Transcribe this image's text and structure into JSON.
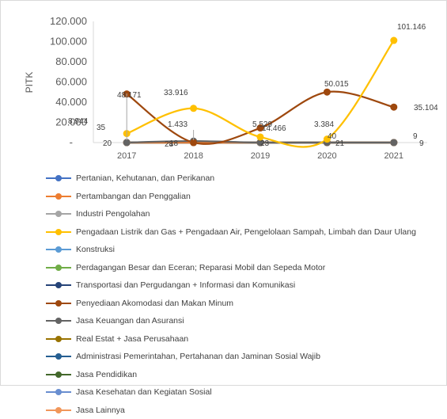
{
  "chart_data": {
    "type": "line",
    "ylabel": "PITK",
    "x": [
      "2017",
      "2018",
      "2019",
      "2020",
      "2021"
    ],
    "y_ticks": [
      "-",
      "20.000",
      "40.000",
      "60.000",
      "80.000",
      "100.000",
      "120.000"
    ],
    "ylim": [
      0,
      120000
    ],
    "grid": false,
    "legend_position": "bottom",
    "series": [
      {
        "name": "Pertanian, Kehutanan, dan Perikanan",
        "color": "#4472C4",
        "values": [
          0,
          0,
          0,
          0,
          0
        ]
      },
      {
        "name": "Pertambangan dan Penggalian",
        "color": "#ED7D31",
        "values": [
          20,
          18,
          23,
          21,
          9
        ]
      },
      {
        "name": "Industri Pengolahan",
        "color": "#A5A5A5",
        "values": [
          0,
          0,
          0,
          0,
          0
        ]
      },
      {
        "name": "Pengadaan Listrik dan Gas + Pengadaan Air, Pengelolaan Sampah, Limbah dan Daur Ulang",
        "color": "#FFC000",
        "values": [
          8944,
          33916,
          5529,
          3384,
          101146
        ]
      },
      {
        "name": "Konstruksi",
        "color": "#5B9BD5",
        "values": [
          0,
          0,
          0,
          0,
          0
        ]
      },
      {
        "name": "Perdagangan Besar dan Eceran; Reparasi Mobil dan Sepeda Motor",
        "color": "#70AD47",
        "values": [
          0,
          0,
          0,
          0,
          0
        ]
      },
      {
        "name": "Transportasi dan Pergudangan + Informasi dan Komunikasi",
        "color": "#264478",
        "values": [
          0,
          0,
          0,
          0,
          0
        ]
      },
      {
        "name": "Penyediaan Akomodasi dan Makan Minum",
        "color": "#9E480E",
        "values": [
          48171,
          28,
          14466,
          50015,
          35104
        ]
      },
      {
        "name": "Jasa Keuangan dan Asuransi",
        "color": "#636363",
        "values": [
          35,
          1433,
          0,
          40,
          9
        ]
      },
      {
        "name": "Real Estat + Jasa Perusahaan",
        "color": "#997300",
        "values": [
          0,
          0,
          0,
          0,
          0
        ]
      },
      {
        "name": "Administrasi Pemerintahan, Pertahanan dan Jaminan Sosial Wajib",
        "color": "#255E91",
        "values": [
          0,
          0,
          0,
          0,
          0
        ]
      },
      {
        "name": "Jasa Pendidikan",
        "color": "#43682B",
        "values": [
          0,
          0,
          0,
          0,
          0
        ]
      },
      {
        "name": "Jasa Kesehatan dan Kegiatan Sosial",
        "color": "#698ED0",
        "values": [
          0,
          0,
          0,
          0,
          0
        ]
      },
      {
        "name": "Jasa Lainnya",
        "color": "#F1975A",
        "values": [
          0,
          0,
          0,
          0,
          0
        ]
      }
    ],
    "data_labels": [
      {
        "x": "2017",
        "text": "48.171",
        "series": "Penyediaan Akomodasi dan Makan Minum"
      },
      {
        "x": "2017",
        "text": "8.944",
        "series": "Pengadaan Listrik dan Gas + Pengadaan Air, Pengelolaan Sampah, Limbah dan Daur Ulang"
      },
      {
        "x": "2017",
        "text": "35",
        "series": "Jasa Keuangan dan Asuransi"
      },
      {
        "x": "2017",
        "text": "20",
        "series": "Pertambangan dan Penggalian"
      },
      {
        "x": "2018",
        "text": "33.916",
        "series": "Pengadaan Listrik dan Gas + Pengadaan Air, Pengelolaan Sampah, Limbah dan Daur Ulang"
      },
      {
        "x": "2018",
        "text": "1.433",
        "series": "Jasa Keuangan dan Asuransi"
      },
      {
        "x": "2018",
        "text": "28",
        "series": "Penyediaan Akomodasi dan Makan Minum"
      },
      {
        "x": "2018",
        "text": "18",
        "series": "Pertambangan dan Penggalian"
      },
      {
        "x": "2019",
        "text": "5.529",
        "series": "Pengadaan Listrik dan Gas + Pengadaan Air, Pengelolaan Sampah, Limbah dan Daur Ulang"
      },
      {
        "x": "2019",
        "text": "14.466",
        "series": "Penyediaan Akomodasi dan Makan Minum"
      },
      {
        "x": "2019",
        "text": "23",
        "series": "Pertambangan dan Penggalian"
      },
      {
        "x": "2020",
        "text": "50.015",
        "series": "Penyediaan Akomodasi dan Makan Minum"
      },
      {
        "x": "2020",
        "text": "3.384",
        "series": "Pengadaan Listrik dan Gas + Pengadaan Air, Pengelolaan Sampah, Limbah dan Daur Ulang"
      },
      {
        "x": "2020",
        "text": "40",
        "series": "Jasa Keuangan dan Asuransi"
      },
      {
        "x": "2020",
        "text": "21",
        "series": "Pertambangan dan Penggalian"
      },
      {
        "x": "2021",
        "text": "101.146",
        "series": "Pengadaan Listrik dan Gas + Pengadaan Air, Pengelolaan Sampah, Limbah dan Daur Ulang"
      },
      {
        "x": "2021",
        "text": "35.104",
        "series": "Penyediaan Akomodasi dan Makan Minum"
      },
      {
        "x": "2021",
        "text": "9",
        "series": "Jasa Keuangan dan Asuransi"
      },
      {
        "x": "2021",
        "text": "9",
        "series": "Pertambangan dan Penggalian"
      }
    ]
  }
}
